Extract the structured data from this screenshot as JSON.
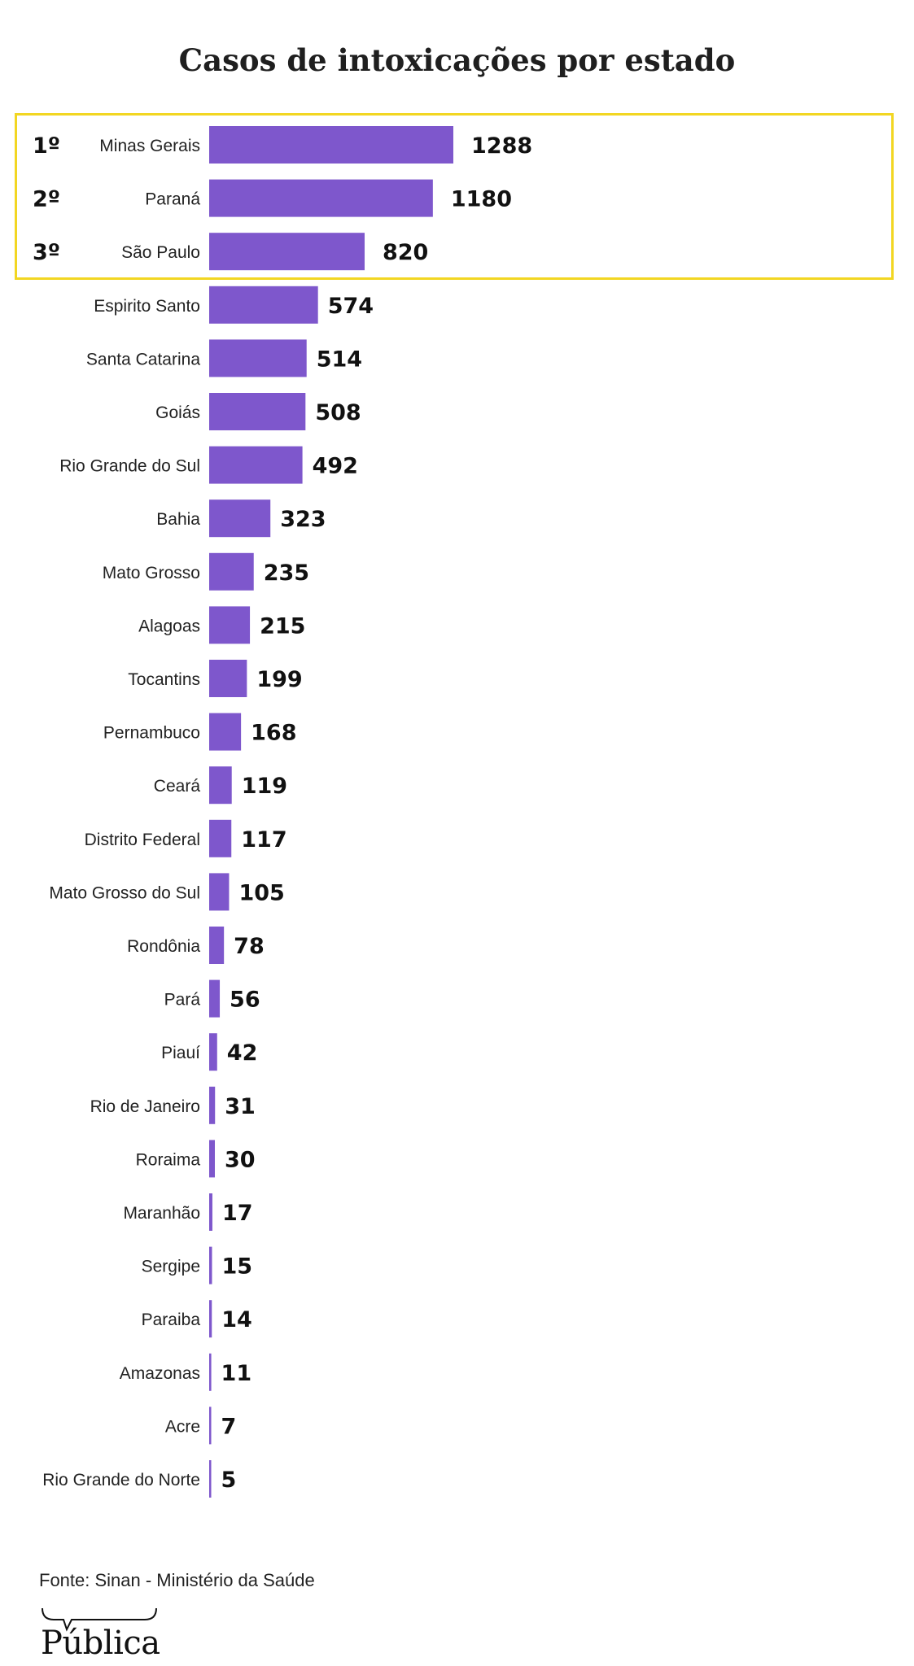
{
  "chart_data": {
    "type": "bar",
    "orientation": "horizontal",
    "title": "Casos de intoxicações por estado",
    "bar_color": "#7e57cc",
    "highlight_color": "#f2d622",
    "ranks": [
      "1º",
      "2º",
      "3º"
    ],
    "categories": [
      "Minas Gerais",
      "Paraná",
      "São Paulo",
      "Espirito Santo",
      "Santa Catarina",
      "Goiás",
      "Rio Grande do Sul",
      "Bahia",
      "Mato Grosso",
      "Alagoas",
      "Tocantins",
      "Pernambuco",
      "Ceará",
      "Distrito Federal",
      "Mato Grosso do Sul",
      "Rondônia",
      "Pará",
      "Piauí",
      "Rio de Janeiro",
      "Roraima",
      "Maranhão",
      "Sergipe",
      "Paraiba",
      "Amazonas",
      "Acre",
      "Rio Grande do Norte"
    ],
    "values": [
      1288,
      1180,
      820,
      574,
      514,
      508,
      492,
      323,
      235,
      215,
      199,
      168,
      119,
      117,
      105,
      78,
      56,
      42,
      31,
      30,
      17,
      15,
      14,
      11,
      7,
      5
    ],
    "xlim": [
      0,
      1288
    ],
    "grid": false,
    "legend": "none"
  },
  "footer": {
    "source": "Fonte: Sinan - Ministério da Saúde",
    "logo": "Pública"
  }
}
